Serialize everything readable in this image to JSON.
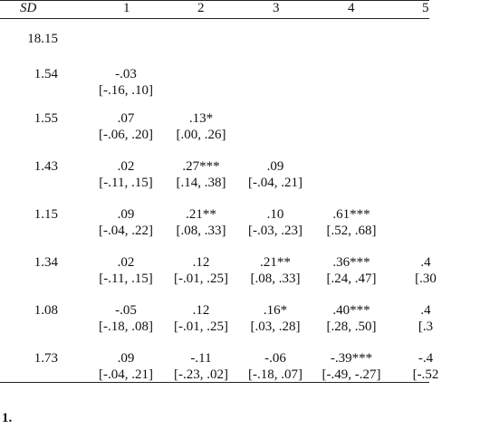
{
  "header": {
    "sd": "SD",
    "cols": [
      "1",
      "2",
      "3",
      "4",
      "5"
    ]
  },
  "rows": [
    {
      "sd": "18.15",
      "cells": []
    },
    {
      "sd": "1.54",
      "cells": [
        {
          "r": "-.03",
          "ci": "[-.16, .10]"
        }
      ]
    },
    {
      "sd": "1.55",
      "cells": [
        {
          "r": ".07",
          "ci": "[-.06, .20]"
        },
        {
          "r": ".13*",
          "ci": "[.00, .26]"
        }
      ]
    },
    {
      "sd": "1.43",
      "cells": [
        {
          "r": ".02",
          "ci": "[-.11, .15]"
        },
        {
          "r": ".27***",
          "ci": "[.14, .38]"
        },
        {
          "r": ".09",
          "ci": "[-.04, .21]"
        }
      ]
    },
    {
      "sd": "1.15",
      "cells": [
        {
          "r": ".09",
          "ci": "[-.04, .22]"
        },
        {
          "r": ".21**",
          "ci": "[.08, .33]"
        },
        {
          "r": ".10",
          "ci": "[-.03, .23]"
        },
        {
          "r": ".61***",
          "ci": "[.52, .68]"
        }
      ]
    },
    {
      "sd": "1.34",
      "cells": [
        {
          "r": ".02",
          "ci": "[-.11, .15]"
        },
        {
          "r": ".12",
          "ci": "[-.01, .25]"
        },
        {
          "r": ".21**",
          "ci": "[.08, .33]"
        },
        {
          "r": ".36***",
          "ci": "[.24, .47]"
        },
        {
          "r": ".4",
          "ci": "[.30"
        }
      ]
    },
    {
      "sd": "1.08",
      "cells": [
        {
          "r": "-.05",
          "ci": "[-.18, .08]"
        },
        {
          "r": ".12",
          "ci": "[-.01, .25]"
        },
        {
          "r": ".16*",
          "ci": "[.03, .28]"
        },
        {
          "r": ".40***",
          "ci": "[.28, .50]"
        },
        {
          "r": ".4",
          "ci": "[.3"
        }
      ]
    },
    {
      "sd": "1.73",
      "cells": [
        {
          "r": ".09",
          "ci": "[-.04, .21]"
        },
        {
          "r": "-.11",
          "ci": "[-.23, .02]"
        },
        {
          "r": "-.06",
          "ci": "[-.18, .07]"
        },
        {
          "r": "-.39***",
          "ci": "[-.49, -.27]"
        },
        {
          "r": "-.4",
          "ci": "[-.52"
        }
      ]
    }
  ],
  "footnote": "1."
}
